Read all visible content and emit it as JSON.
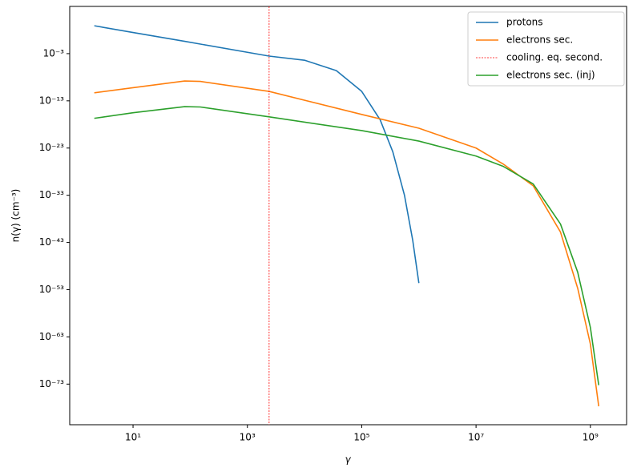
{
  "chart_data": {
    "type": "line",
    "xlabel": "γ",
    "ylabel": "n(γ)   (cm⁻³)",
    "xscale": "log",
    "yscale": "log",
    "legend": "upper right",
    "xlim": [
      0.78,
      4300000000.0
    ],
    "ylim": [
      2.5e-82,
      10000000.0
    ],
    "xticks": [
      {
        "value": 10,
        "label": "10¹"
      },
      {
        "value": 1000,
        "label": "10³"
      },
      {
        "value": 100000,
        "label": "10⁵"
      },
      {
        "value": 10000000,
        "label": "10⁷"
      },
      {
        "value": 1000000000,
        "label": "10⁹"
      }
    ],
    "yticks": [
      {
        "value": 0.001,
        "label": "10⁻³"
      },
      {
        "value": 1e-13,
        "label": "10⁻¹³"
      },
      {
        "value": 1e-23,
        "label": "10⁻²³"
      },
      {
        "value": 1e-33,
        "label": "10⁻³³"
      },
      {
        "value": 1e-43,
        "label": "10⁻⁴³"
      },
      {
        "value": 1e-53,
        "label": "10⁻⁵³"
      },
      {
        "value": 1e-63,
        "label": "10⁻⁶³"
      },
      {
        "value": 1e-73,
        "label": "10⁻⁷³"
      }
    ],
    "series": [
      {
        "name": "protons",
        "color": "#1f77b4",
        "x": [
          2.1,
          10,
          80,
          2400,
          10000,
          36000,
          100000,
          210000,
          350000,
          560000,
          780000,
          1000000
        ],
        "values": [
          800,
          30,
          0.4,
          0.0003,
          4e-05,
          2.5e-07,
          1e-11,
          1e-17,
          1.6e-24,
          1e-33,
          3e-43,
          2.5e-52
        ]
      },
      {
        "name": "electrons sec.",
        "color": "#ff7f0e",
        "x": [
          2.1,
          10,
          80,
          150,
          2400,
          100000,
          1000000,
          10000000,
          30000000,
          100000000,
          300000000,
          600000000,
          1000000000,
          1400000000
        ],
        "values": [
          5e-12,
          6e-11,
          1.6e-09,
          1.3e-09,
          1e-11,
          1.3e-16,
          1.6e-19,
          1e-23,
          4e-27,
          1e-31,
          1.6e-41,
          2e-53,
          3e-65,
          2e-78
        ]
      },
      {
        "name": "cooling. eq. second.",
        "color": "#ff0000",
        "kind": "vline",
        "style": "dotted",
        "x": 2400
      },
      {
        "name": "electrons sec. (inj)",
        "color": "#2ca02c",
        "x": [
          2.1,
          10,
          80,
          150,
          2400,
          100000,
          1000000,
          10000000,
          30000000,
          100000000,
          300000000,
          600000000,
          1000000000,
          1400000000
        ],
        "values": [
          2e-17,
          3e-16,
          6e-15,
          5e-15,
          4e-17,
          5e-20,
          3e-22,
          2e-25,
          1.3e-27,
          2.5e-31,
          8e-40,
          5e-50,
          1e-61,
          6e-74
        ]
      }
    ]
  }
}
